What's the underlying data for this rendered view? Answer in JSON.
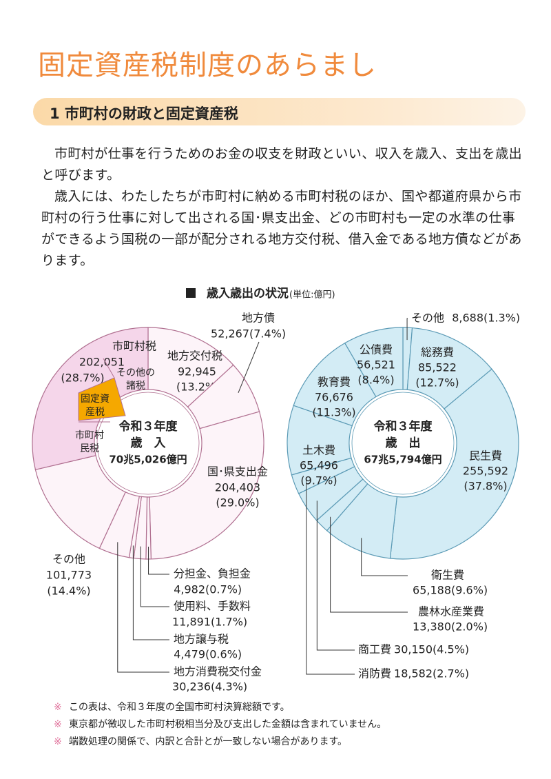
{
  "header": {
    "title": "固定資産税制度のあらまし",
    "section": "1 市町村の財政と固定資産税"
  },
  "paragraphs": [
    "市町村が仕事を行うためのお金の収支を財政といい、収入を歳入、支出を歳出と呼びます。",
    "歳入には、わたしたちが市町村に納める市町村税のほか、国や都道府県から市町村の行う仕事に対して出される国･県支出金、どの市町村も一定の水準の仕事ができるよう国税の一部が配分される地方交付税、借入金である地方債などがあります。"
  ],
  "figure": {
    "title": "歳入歳出の状況",
    "unit": "(単位:億円)"
  },
  "chart_data": [
    {
      "type": "pie",
      "center_label": [
        "令和３年度",
        "歳　入",
        "70兆5,026億円"
      ],
      "categories": [
        "地方交付税",
        "地方債",
        "国･県支出金",
        "分担金、負担金",
        "使用料、手数料",
        "地方譲与税",
        "地方消費税交付金",
        "その他",
        "市町村税"
      ],
      "values": [
        92945,
        52267,
        204403,
        4982,
        11891,
        4479,
        30236,
        101773,
        202051
      ],
      "value_labels": [
        "92,945",
        "52,267",
        "204,403",
        "4,982",
        "11,891",
        "4,479",
        "30,236",
        "101,773",
        "202,051"
      ],
      "percent_labels": [
        "(13.2%)",
        "(7.4%)",
        "(29.0%)",
        "(0.7%)",
        "(1.7%)",
        "(0.6%)",
        "(4.3%)",
        "(14.4%)",
        "(28.7%)"
      ],
      "colors": [
        "#fdf4f9",
        "#fdf4f9",
        "#fdf4f9",
        "#fdf4f9",
        "#fdf4f9",
        "#fdf4f9",
        "#fdf4f9",
        "#fdf4f9",
        "#f5d6ea"
      ],
      "sub_labels": [
        [
          "市町村",
          "民税"
        ],
        [
          "固定資",
          "産税"
        ],
        [
          "その他の",
          "諸税"
        ]
      ]
    },
    {
      "type": "pie",
      "center_label": [
        "令和３年度",
        "歳　出",
        "67兆5,794億円"
      ],
      "categories": [
        "その他",
        "総務費",
        "民生費",
        "衛生費",
        "農林水産業費",
        "商工費",
        "消防費",
        "土木費",
        "教育費",
        "公債費"
      ],
      "values": [
        8688,
        85522,
        255592,
        65188,
        13380,
        30150,
        18582,
        65496,
        76676,
        56521
      ],
      "value_labels": [
        "8,688",
        "85,522",
        "255,592",
        "65,188",
        "13,380",
        "30,150",
        "18,582",
        "65,496",
        "76,676",
        "56,521"
      ],
      "percent_labels": [
        "(1.3%)",
        "(12.7%)",
        "(37.8%)",
        "(9.6%)",
        "(2.0%)",
        "(4.5%)",
        "(2.7%)",
        "(9.7%)",
        "(11.3%)",
        "(8.4%)"
      ],
      "colors": [
        "#d3ecf5",
        "#d3ecf5",
        "#d3ecf5",
        "#d3ecf5",
        "#d3ecf5",
        "#d3ecf5",
        "#d3ecf5",
        "#d3ecf5",
        "#d3ecf5",
        "#d3ecf5"
      ]
    }
  ],
  "notes": {
    "mark": "※",
    "items": [
      "この表は、令和３年度の全国市町村決算総額です。",
      "東京都が徴収した市町村税相当分及び支出した金額は含まれていません。",
      "端数処理の関係で、内訳と合計とが一致しない場合があります。"
    ]
  }
}
